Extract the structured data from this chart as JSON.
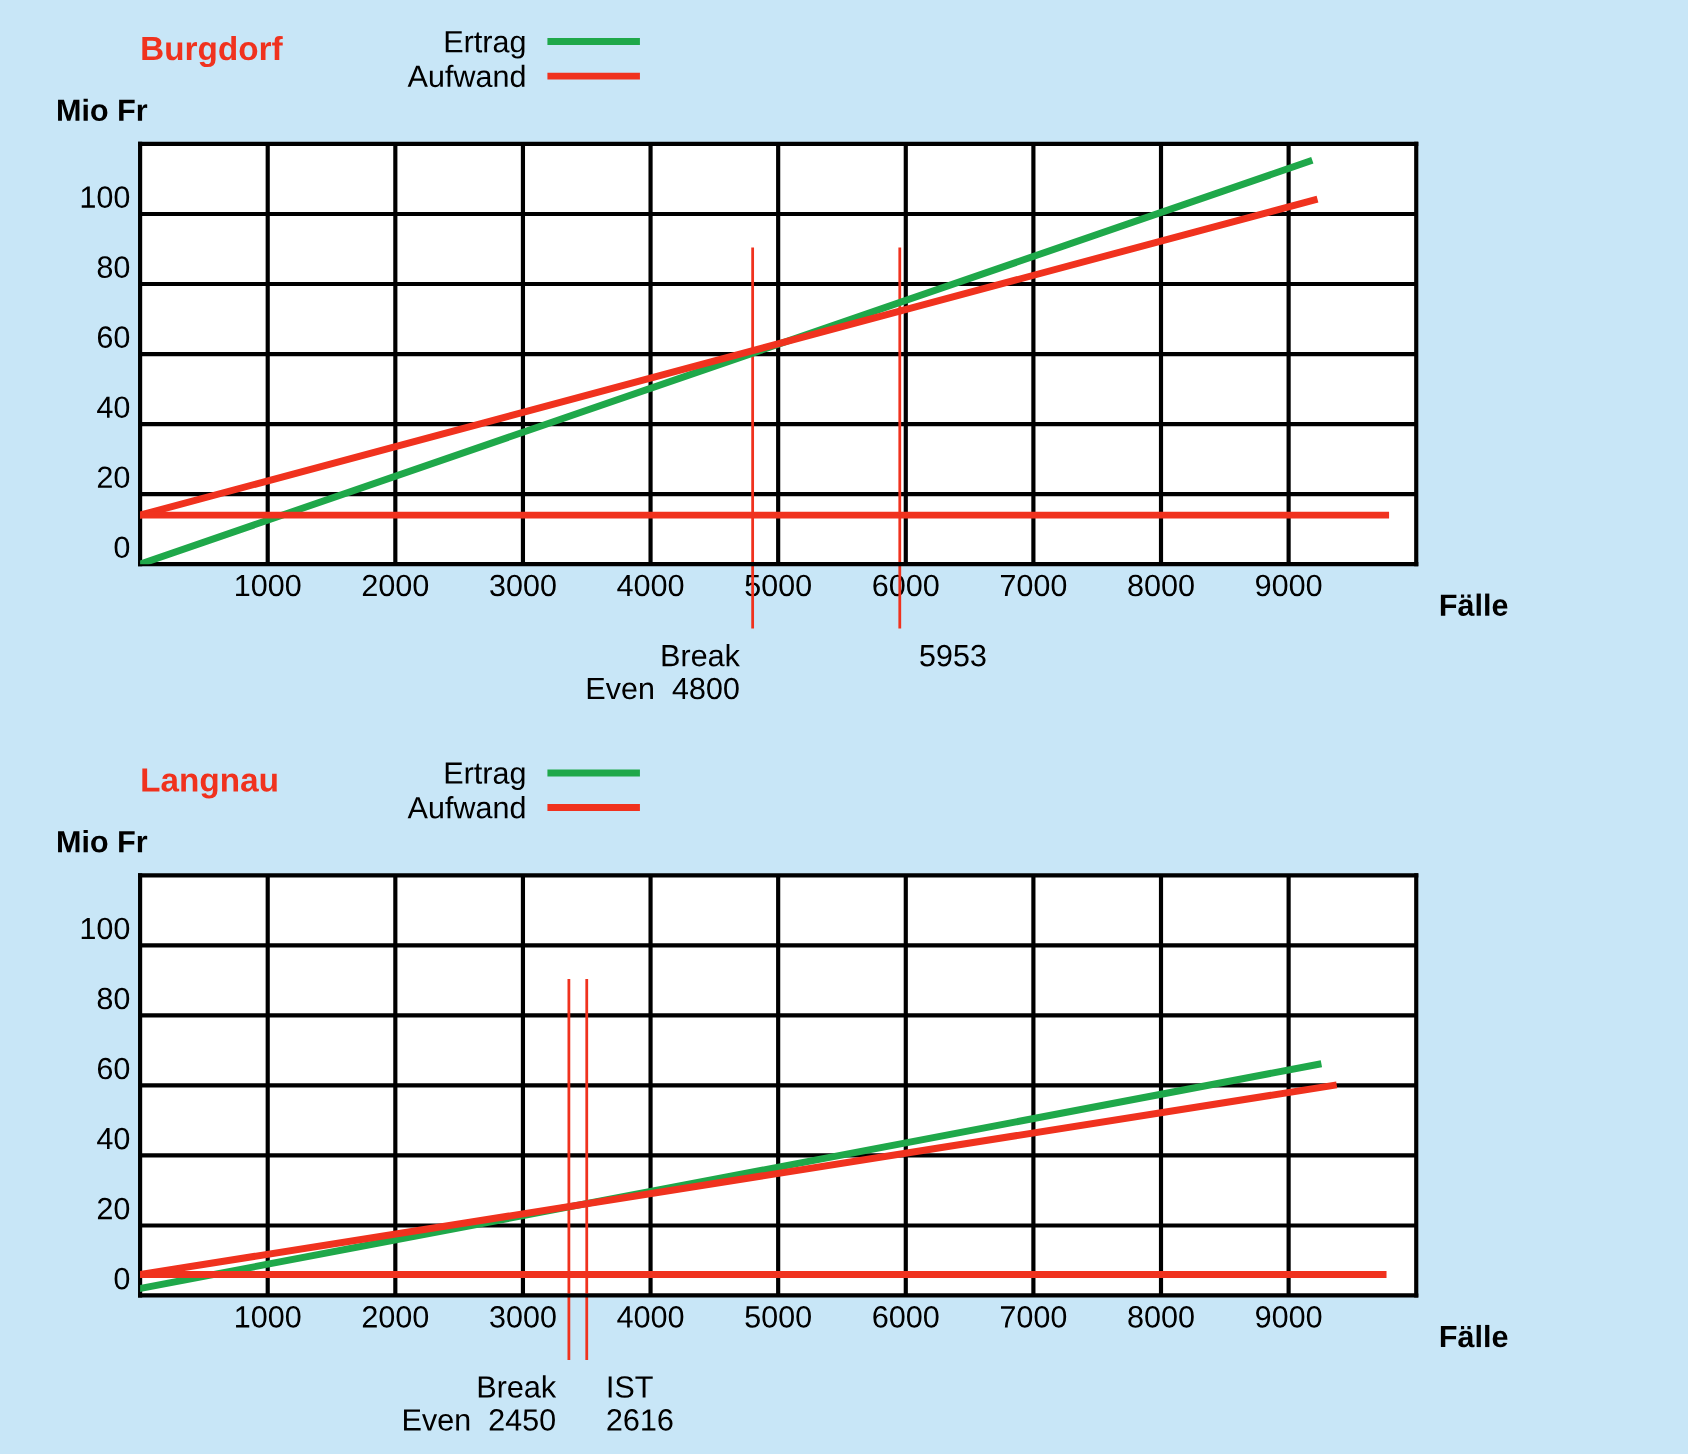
{
  "chart_data": [
    {
      "type": "line",
      "title": "Burgdorf",
      "ylabel": "Mio Fr",
      "xlabel": "Fälle",
      "xlim": [
        0,
        10000
      ],
      "ylim": [
        0,
        120
      ],
      "xticks": [
        1000,
        2000,
        3000,
        4000,
        5000,
        6000,
        7000,
        8000,
        9000
      ],
      "yticks": [
        0,
        20,
        40,
        60,
        80,
        100
      ],
      "grid": true,
      "legend": "top left",
      "series": [
        {
          "name": "Ertrag",
          "color": "#1fa84a",
          "x": [
            0,
            9160
          ],
          "values": [
            0,
            115
          ]
        },
        {
          "name": "Aufwand",
          "color": "#f0321e",
          "x": [
            0,
            9200
          ],
          "values": [
            14,
            104
          ]
        },
        {
          "color": "#f0321e",
          "x": [
            0,
            9760
          ],
          "values": [
            14,
            14
          ]
        }
      ],
      "ref_lines": [
        {
          "axis": "x",
          "value": 4800,
          "label": "Break\nEven  4800",
          "color": "#f0321e"
        },
        {
          "axis": "x",
          "value": 5953,
          "label": "5953",
          "color": "#f0321e"
        }
      ]
    },
    {
      "type": "line",
      "title": "Langnau",
      "ylabel": "Mio Fr",
      "xlabel": "Fälle",
      "xlim": [
        0,
        10000
      ],
      "ylim": [
        0,
        120
      ],
      "xticks": [
        1000,
        2000,
        3000,
        4000,
        5000,
        6000,
        7000,
        8000,
        9000
      ],
      "yticks": [
        0,
        20,
        40,
        60,
        80,
        100
      ],
      "grid": true,
      "legend": "top left",
      "series": [
        {
          "name": "Ertrag",
          "color": "#1fa84a",
          "x": [
            0,
            9230
          ],
          "values": [
            2,
            66
          ]
        },
        {
          "name": "Aufwand",
          "color": "#f0321e",
          "x": [
            0,
            9350
          ],
          "values": [
            6,
            60
          ]
        },
        {
          "color": "#f0321e",
          "x": [
            0,
            9740
          ],
          "values": [
            6,
            6
          ]
        }
      ],
      "ref_lines": [
        {
          "axis": "x",
          "value": 3360,
          "label": "Break\nEven  2450",
          "color": "#f0321e"
        },
        {
          "axis": "x",
          "value": 3500,
          "label": "IST\n2616",
          "color": "#f0321e"
        }
      ]
    }
  ]
}
